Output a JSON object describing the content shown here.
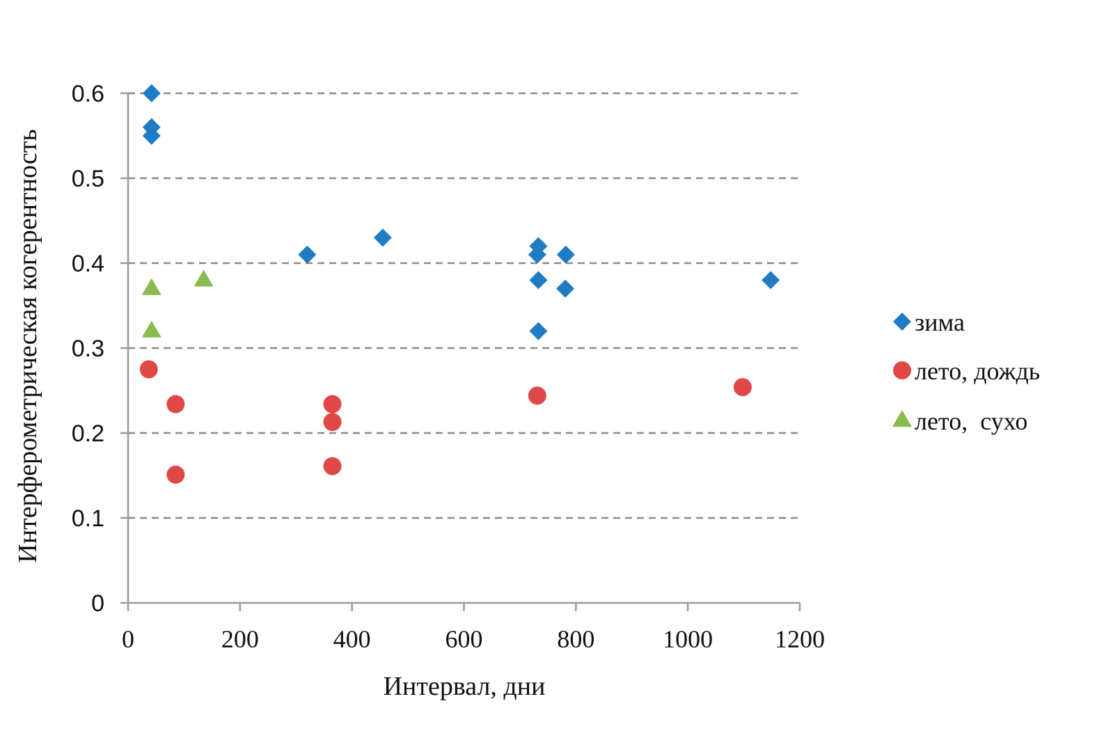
{
  "chart_data": {
    "type": "scatter",
    "title": "",
    "xlabel": "Интервал, дни",
    "ylabel": "Интерферометрическая когерентность",
    "xlim": [
      0,
      1200
    ],
    "ylim": [
      0,
      0.6
    ],
    "xticks": [
      "0",
      "200",
      "400",
      "600",
      "800",
      "1000",
      "1200"
    ],
    "yticks": [
      "0",
      "0.1",
      "0.2",
      "0.3",
      "0.4",
      "0.5",
      "0.6"
    ],
    "grid": "horizontal dashed",
    "legend_position": "right",
    "series": [
      {
        "name": "зима",
        "marker": "diamond",
        "color": "#1f7bc4",
        "points": [
          {
            "x": 42,
            "y": 0.6
          },
          {
            "x": 42,
            "y": 0.56
          },
          {
            "x": 42,
            "y": 0.55
          },
          {
            "x": 320,
            "y": 0.41
          },
          {
            "x": 455,
            "y": 0.43
          },
          {
            "x": 733,
            "y": 0.42
          },
          {
            "x": 731,
            "y": 0.41
          },
          {
            "x": 782,
            "y": 0.41
          },
          {
            "x": 733,
            "y": 0.38
          },
          {
            "x": 781,
            "y": 0.37
          },
          {
            "x": 733,
            "y": 0.32
          },
          {
            "x": 1148,
            "y": 0.38
          }
        ]
      },
      {
        "name": "лето, дождь",
        "marker": "circle",
        "color": "#e04848",
        "points": [
          {
            "x": 37,
            "y": 0.275
          },
          {
            "x": 85,
            "y": 0.234
          },
          {
            "x": 85,
            "y": 0.151
          },
          {
            "x": 365,
            "y": 0.234
          },
          {
            "x": 365,
            "y": 0.213
          },
          {
            "x": 365,
            "y": 0.161
          },
          {
            "x": 731,
            "y": 0.244
          },
          {
            "x": 1098,
            "y": 0.254
          }
        ]
      },
      {
        "name": "лето,  сухо",
        "marker": "triangle",
        "color": "#8bbb4f",
        "points": [
          {
            "x": 42,
            "y": 0.37
          },
          {
            "x": 42,
            "y": 0.32
          },
          {
            "x": 135,
            "y": 0.38
          }
        ]
      }
    ]
  }
}
